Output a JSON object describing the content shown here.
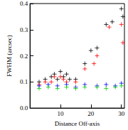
{
  "chart_data": {
    "type": "scatter",
    "x_label": "Distance Off-axis",
    "y_label": "FWHM (arcsec)",
    "xlim": [
      0,
      31
    ],
    "xticks": [
      10,
      20,
      30
    ],
    "ylim": [
      0,
      0.4
    ],
    "yticks": [
      {
        "value": 0,
        "label": "0.0"
      },
      0.1,
      0.2,
      0.3,
      0.4
    ],
    "marker": "cross",
    "grid": false,
    "series": [
      {
        "color": "#000000",
        "x": [
          3,
          5,
          7,
          8,
          9,
          10,
          11,
          12,
          13,
          15,
          18,
          20,
          22,
          25,
          27,
          30,
          30.5
        ],
        "values": [
          0.1,
          0.11,
          0.12,
          0.13,
          0.11,
          0.14,
          0.12,
          0.13,
          0.11,
          0.11,
          0.17,
          0.22,
          0.23,
          0.32,
          0.33,
          0.38,
          0.35
        ]
      },
      {
        "color": "#ff0000",
        "x": [
          3,
          5,
          7,
          8,
          10,
          11,
          12,
          15,
          18,
          21,
          22,
          26,
          30,
          30.5
        ],
        "values": [
          0.09,
          0.1,
          0.1,
          0.12,
          0.12,
          0.11,
          0.1,
          0.1,
          0.15,
          0.17,
          0.2,
          0.31,
          0.32,
          0.25
        ]
      },
      {
        "color": "#0000ff",
        "x": [
          3,
          6,
          9,
          12,
          15,
          18,
          22,
          25,
          28,
          30
        ],
        "values": [
          0.085,
          0.09,
          0.085,
          0.09,
          0.08,
          0.09,
          0.085,
          0.09,
          0.085,
          0.095
        ]
      },
      {
        "color": "#00cc00",
        "x": [
          3,
          6,
          9,
          12,
          15,
          18,
          22,
          25,
          28,
          30
        ],
        "values": [
          0.075,
          0.08,
          0.075,
          0.08,
          0.075,
          0.08,
          0.08,
          0.075,
          0.08,
          0.085
        ]
      }
    ]
  }
}
